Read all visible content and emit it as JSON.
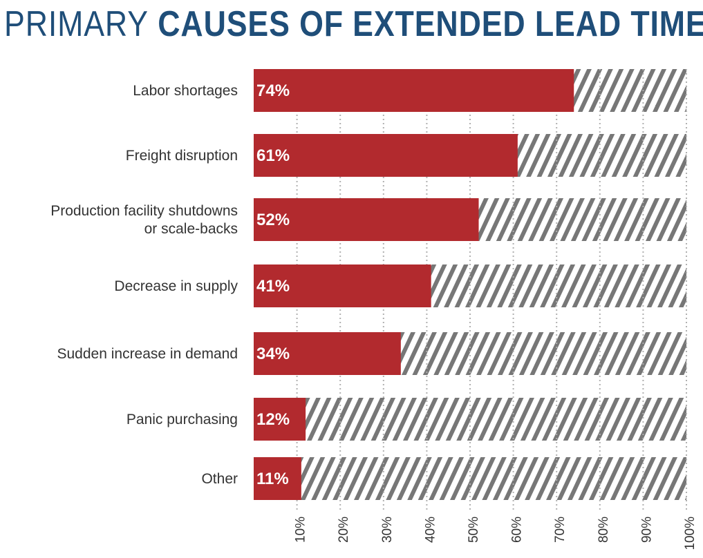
{
  "header": {
    "title_light": "PRIMARY",
    "title_bold": "CAUSES OF EXTENDED LEAD TIMES"
  },
  "colors": {
    "title": "#1f4e79",
    "bar": "#b22a2e",
    "hatch": "#777777",
    "text": "#333333",
    "grid": "#b0b0b0"
  },
  "chart_data": {
    "type": "bar",
    "orientation": "horizontal",
    "title": "PRIMARY CAUSES OF EXTENDED LEAD TIMES",
    "categories": [
      [
        "Labor shortages"
      ],
      [
        "Freight disruption"
      ],
      [
        "Production facility shutdowns",
        "or scale-backs"
      ],
      [
        "Decrease in supply"
      ],
      [
        "Sudden increase in demand"
      ],
      [
        "Panic purchasing"
      ],
      [
        "Other"
      ]
    ],
    "values": [
      74,
      61,
      52,
      41,
      34,
      12,
      11
    ],
    "value_labels": [
      "74%",
      "61%",
      "52%",
      "41%",
      "34%",
      "12%",
      "11%"
    ],
    "xlim": [
      0,
      100
    ],
    "xticks": [
      10,
      20,
      30,
      40,
      50,
      60,
      70,
      80,
      90,
      100
    ],
    "xtick_labels": [
      "10%",
      "20%",
      "30%",
      "40%",
      "50%",
      "60%",
      "70%",
      "80%",
      "90%",
      "100%"
    ],
    "grid": true,
    "background": "hatched remainder to 100%"
  }
}
